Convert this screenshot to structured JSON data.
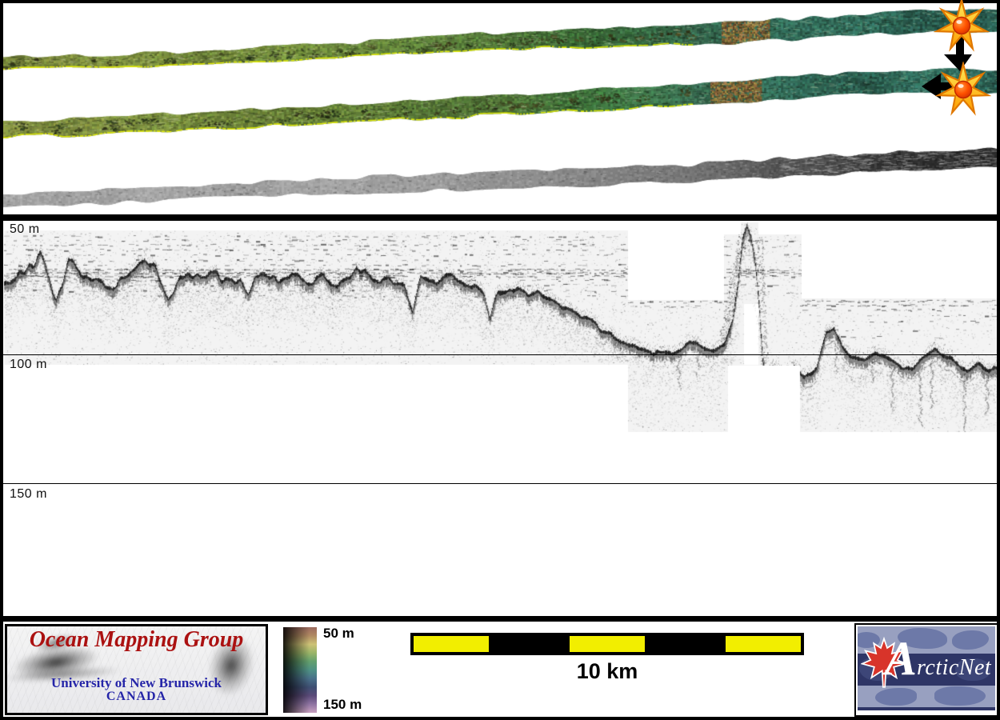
{
  "swath_panel": {
    "strips": [
      {
        "name": "bathymetry-swath-line-1",
        "style": "color-shaded-relief"
      },
      {
        "name": "bathymetry-swath-line-2",
        "style": "color-shaded-relief"
      },
      {
        "name": "sidescan-swath-line-3",
        "style": "grayscale-backscatter"
      }
    ],
    "markers": [
      {
        "icon": "starburst-icon",
        "arrow": "down"
      },
      {
        "icon": "starburst-icon",
        "arrow": "left"
      }
    ]
  },
  "seismic_panel": {
    "depth_labels": [
      {
        "text": "50 m"
      },
      {
        "text": "100 m"
      },
      {
        "text": "150 m"
      }
    ]
  },
  "footer": {
    "omg_logo": {
      "title": "Ocean Mapping Group",
      "subtitle": "University of New Brunswick",
      "country": "CANADA",
      "title_color": "#ab1111",
      "subtitle_color": "#2525a8"
    },
    "color_legend": {
      "top_label": "50 m",
      "bottom_label": "150 m",
      "gradient": [
        "#9b6a5e",
        "#b08a62",
        "#cdc276",
        "#9ab468",
        "#63a06e",
        "#4f9184",
        "#497089",
        "#3e4f72",
        "#5a4a78",
        "#8f74a2",
        "#c7a0bf"
      ]
    },
    "scale_bar": {
      "label": "10 km",
      "segment_count": 5,
      "yellow": "#f2ee00",
      "black": "#000000"
    },
    "arcticnet_logo": {
      "initial": "A",
      "rest": "rcticNet",
      "leaf_color": "#d8342a",
      "band_dark": "#2e3566",
      "band_light": "#98a0c0"
    }
  },
  "chart_data": {
    "type": "area",
    "title": "",
    "xlabel": "",
    "ylabel": "",
    "y_tick_labels": [
      "50 m",
      "100 m",
      "150 m"
    ],
    "y_range_m": [
      50,
      200
    ],
    "x_range_km": [
      0,
      25.6
    ],
    "scale_bar_km": 10,
    "grid_lines_m": [
      100,
      150
    ],
    "series": [
      {
        "name": "seafloor-depth-profile",
        "x_km": [
          0.0,
          0.95,
          1.36,
          1.67,
          2.18,
          2.8,
          3.21,
          3.63,
          3.93,
          4.24,
          4.55,
          4.86,
          5.27,
          5.69,
          6.1,
          6.3,
          6.61,
          7.02,
          7.44,
          7.85,
          8.26,
          8.67,
          9.08,
          9.5,
          9.91,
          10.32,
          10.53,
          10.73,
          11.14,
          11.56,
          11.97,
          12.38,
          12.52,
          12.73,
          13.2,
          13.62,
          14.03,
          14.44,
          14.85,
          15.27,
          15.68,
          16.09,
          16.5,
          16.91,
          17.32,
          17.67,
          18.0,
          18.29,
          18.56,
          18.77,
          18.91,
          19.03,
          19.14,
          19.24,
          19.36,
          19.47,
          19.55,
          19.63,
          19.8,
          20.07,
          20.35,
          20.62,
          20.93,
          21.18,
          21.38,
          21.59,
          21.86,
          22.17,
          22.48,
          22.79,
          23.1,
          23.41,
          23.72,
          23.98,
          24.27,
          24.56,
          24.81,
          25.1,
          25.36,
          25.58
        ],
        "depth_m": [
          74,
          64,
          80,
          67,
          72,
          77,
          71,
          63,
          69,
          82,
          73,
          72,
          69,
          73,
          72,
          78,
          71,
          74,
          71,
          72,
          70,
          73,
          69,
          72,
          71,
          76,
          85,
          72,
          73,
          72,
          74,
          78,
          87,
          76,
          76,
          78,
          79,
          83,
          86,
          90,
          93,
          97,
          99,
          100,
          99,
          96,
          98,
          99,
          97,
          88,
          74,
          57,
          52,
          56,
          66,
          85,
          103,
          109,
          106,
          108,
          105,
          109,
          106,
          93,
          91,
          98,
          101,
          103,
          100,
          102,
          105,
          106,
          102,
          99,
          102,
          104,
          107,
          105,
          107,
          106
        ]
      }
    ],
    "features": [
      {
        "name": "seafloor-pinnacle",
        "x_km": 19.1,
        "min_depth_m": 52
      }
    ]
  }
}
